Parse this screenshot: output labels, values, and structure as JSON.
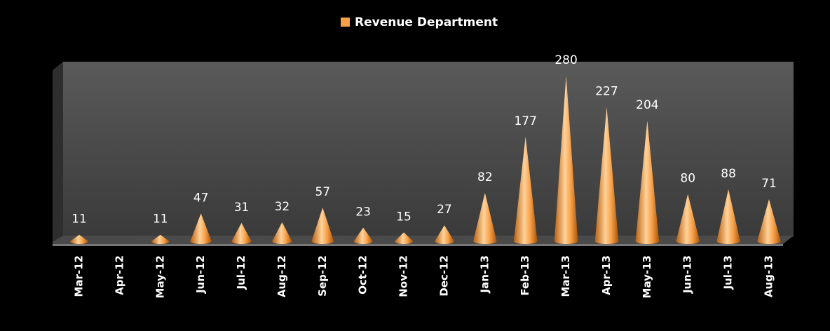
{
  "chart_data": {
    "type": "cone",
    "categories": [
      "Mar-12",
      "Apr-12",
      "May-12",
      "Jun-12",
      "Jul-12",
      "Aug-12",
      "Sep-12",
      "Oct-12",
      "Nov-12",
      "Dec-12",
      "Jan-13",
      "Feb-13",
      "Mar-13",
      "Apr-13",
      "May-13",
      "Jun-13",
      "Jul-13",
      "Aug-13"
    ],
    "series": [
      {
        "name": "Revenue Department",
        "color": "#f7a048",
        "values": [
          11,
          null,
          11,
          47,
          31,
          32,
          57,
          23,
          15,
          27,
          82,
          177,
          280,
          227,
          204,
          80,
          88,
          71
        ]
      }
    ],
    "legend": "top"
  }
}
